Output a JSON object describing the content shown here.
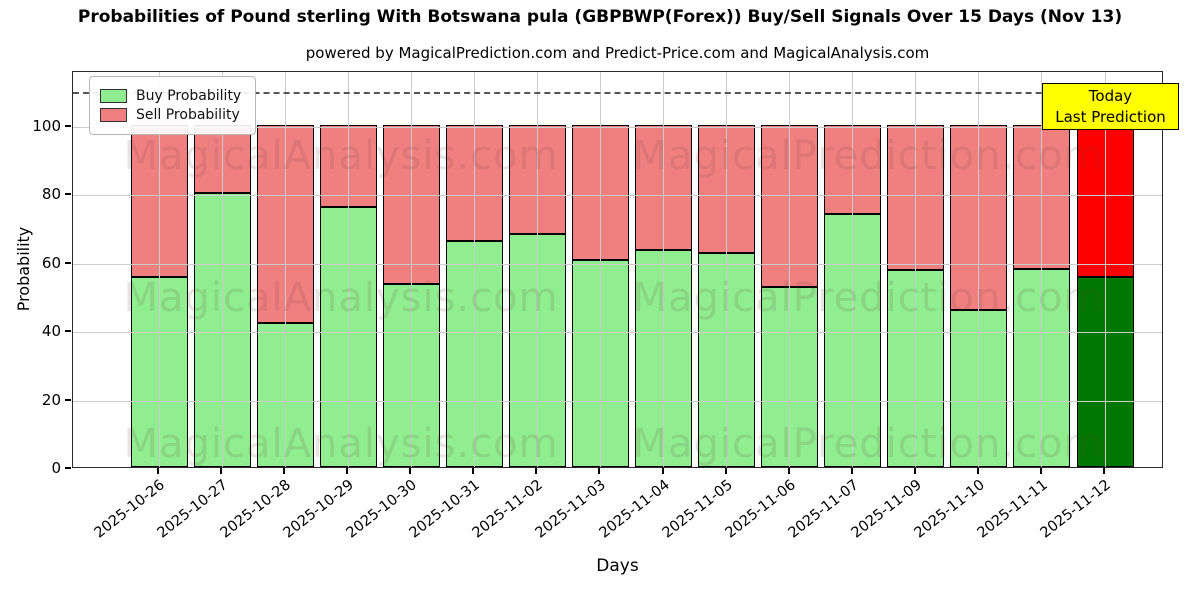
{
  "title": "Probabilities of Pound sterling With Botswana pula (GBPBWP(Forex)) Buy/Sell Signals Over 15 Days (Nov 13)",
  "subtitle": "powered by MagicalPrediction.com and Predict-Price.com and MagicalAnalysis.com",
  "legend": {
    "buy_label": "Buy Probability",
    "sell_label": "Sell Probability"
  },
  "today_box": {
    "line1": "Today",
    "line2": "Last Prediction",
    "bg_color": "#ffff00"
  },
  "watermarks": {
    "left": "MagicalAnalysis.com",
    "right": "MagicalPrediction.com"
  },
  "axes": {
    "xlabel": "Days",
    "ylabel": "Probability",
    "yticks": [
      0,
      20,
      40,
      60,
      80,
      100
    ]
  },
  "colors": {
    "buy": "#90ee90",
    "sell": "#f08080",
    "today_buy": "#007800",
    "today_sell": "#ff0000",
    "grid": "#cccccc",
    "dashed_line": "#555555"
  },
  "chart_data": {
    "type": "bar",
    "stacked": true,
    "title": "Probabilities of Pound sterling With Botswana pula (GBPBWP(Forex)) Buy/Sell Signals Over 15 Days (Nov 13)",
    "xlabel": "Days",
    "ylabel": "Probability",
    "ylim": [
      0,
      116
    ],
    "dashed_line_y": 110,
    "grid": true,
    "legend_position": "upper left",
    "categories": [
      "2025-10-26",
      "2025-10-27",
      "2025-10-28",
      "2025-10-29",
      "2025-10-30",
      "2025-10-31",
      "2025-11-02",
      "2025-11-03",
      "2025-11-04",
      "2025-11-05",
      "2025-11-06",
      "2025-11-07",
      "2025-11-09",
      "2025-11-10",
      "2025-11-11",
      "2025-11-12"
    ],
    "series": [
      {
        "name": "Buy Probability",
        "color": "#90ee90",
        "values": [
          55.5,
          80,
          42,
          76,
          53.5,
          66,
          68,
          60.5,
          63.5,
          62.5,
          52.5,
          74,
          57.5,
          46,
          58,
          55.5
        ]
      },
      {
        "name": "Sell Probability",
        "color": "#f08080",
        "values": [
          44.5,
          20,
          58,
          24,
          46.5,
          34,
          32,
          39.5,
          36.5,
          37.5,
          47.5,
          26,
          42.5,
          54,
          42,
          44.5
        ]
      }
    ],
    "today_index": 15,
    "today_colors": {
      "buy": "#007800",
      "sell": "#ff0000"
    }
  }
}
